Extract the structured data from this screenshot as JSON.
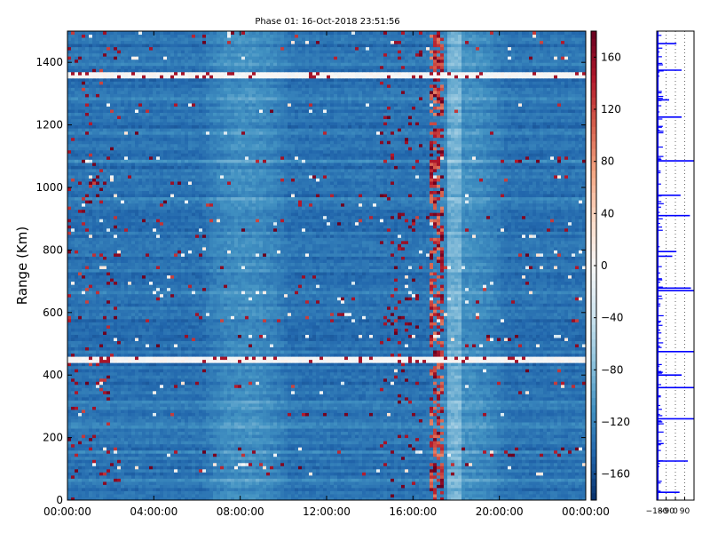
{
  "chart_data": [
    {
      "type": "heatmap",
      "title": "Phase 01: 16-Oct-2018 23:51:56",
      "xlabel": "",
      "ylabel": "Range (Km)",
      "x_tick_labels": [
        "00:00:00",
        "04:00:00",
        "08:00:00",
        "12:00:00",
        "16:00:00",
        "20:00:00",
        "00:00:00"
      ],
      "x_tick_hours": [
        0,
        4,
        8,
        12,
        16,
        20,
        24
      ],
      "xlim_hours": [
        0,
        24
      ],
      "ylim": [
        0,
        1500
      ],
      "y_ticks": [
        0,
        200,
        400,
        600,
        800,
        1000,
        1200,
        1400
      ],
      "color_scale": {
        "vmin": -180,
        "vmax": 180,
        "ticks": [
          -160,
          -120,
          -80,
          -40,
          0,
          40,
          80,
          120,
          160
        ],
        "tick_labels": [
          "−160",
          "−120",
          "−80",
          "−40",
          "0",
          "40",
          "80",
          "120",
          "160"
        ],
        "colormap": "RdBu (reversed)",
        "stops": [
          "#08306b",
          "#2166ac",
          "#4393c3",
          "#92c5de",
          "#d1e5f0",
          "#f7f7f7",
          "#fddbc7",
          "#f4a582",
          "#d6604d",
          "#b2182b",
          "#67001f"
        ]
      },
      "background_phase_deg": -135,
      "lighter_time_bands_hours": [
        [
          7.0,
          9.5
        ],
        [
          17.5,
          19.5
        ]
      ],
      "white_range_bands_km": [
        [
          1355,
          1370
        ],
        [
          448,
          456
        ]
      ],
      "red_activity_hours": [
        [
          16.8,
          17.5
        ]
      ],
      "grid": false
    },
    {
      "type": "line",
      "title": "",
      "x_tick_labels": [
        "−180",
        "−90",
        "0",
        "90"
      ],
      "x_ticks": [
        -180,
        -90,
        0,
        90
      ],
      "xlim": [
        -180,
        180
      ],
      "ylim": [
        0,
        1500
      ],
      "orientation": "vertical",
      "line_color": "#0000ff",
      "grid": true,
      "spikes": [
        {
          "range_km": 25,
          "phase": 40
        },
        {
          "range_km": 125,
          "phase": 120
        },
        {
          "range_km": 260,
          "phase": 180
        },
        {
          "range_km": 360,
          "phase": 180
        },
        {
          "range_km": 400,
          "phase": 60
        },
        {
          "range_km": 475,
          "phase": 180
        },
        {
          "range_km": 670,
          "phase": 180
        },
        {
          "range_km": 678,
          "phase": 150
        },
        {
          "range_km": 780,
          "phase": -30
        },
        {
          "range_km": 795,
          "phase": 10
        },
        {
          "range_km": 910,
          "phase": 140
        },
        {
          "range_km": 975,
          "phase": 50
        },
        {
          "range_km": 1085,
          "phase": 180
        },
        {
          "range_km": 1225,
          "phase": 60
        },
        {
          "range_km": 1280,
          "phase": -60
        },
        {
          "range_km": 1375,
          "phase": 60
        },
        {
          "range_km": 1460,
          "phase": 10
        }
      ]
    }
  ]
}
